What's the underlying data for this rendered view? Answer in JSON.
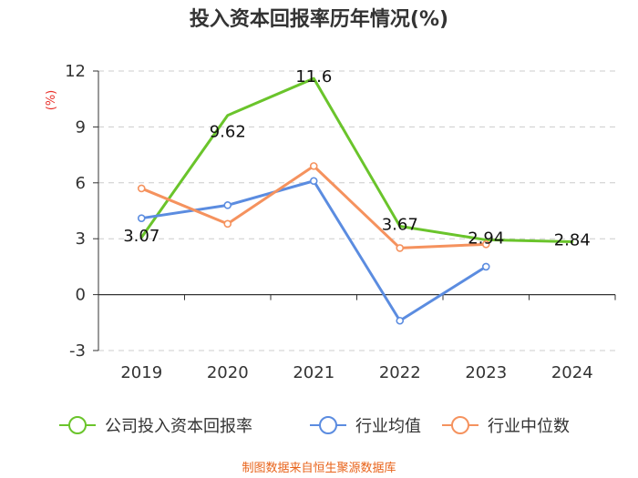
{
  "chart_data": {
    "type": "line",
    "title": "投入资本回报率历年情况(%)",
    "ylabel": "(%)",
    "xlabel": "",
    "categories": [
      "2019",
      "2020",
      "2021",
      "2022",
      "2023",
      "2024"
    ],
    "ylim": [
      -3,
      12
    ],
    "yticks": [
      -3,
      0,
      3,
      6,
      9,
      12
    ],
    "grid": true,
    "legend_position": "bottom",
    "series": [
      {
        "name": "公司投入资本回报率",
        "color": "#6ac42b",
        "values": [
          3.07,
          9.62,
          11.6,
          3.67,
          2.94,
          2.84
        ],
        "labels": [
          "3.07",
          "9.62",
          "11.6",
          "3.67",
          "2.94",
          "2.84"
        ],
        "show_markers": false
      },
      {
        "name": "行业均值",
        "color": "#5b8ce0",
        "values": [
          4.1,
          4.8,
          6.1,
          -1.4,
          1.5,
          null
        ],
        "show_markers": true
      },
      {
        "name": "行业中位数",
        "color": "#f5925e",
        "values": [
          5.7,
          3.8,
          6.9,
          2.5,
          2.7,
          null
        ],
        "show_markers": true
      }
    ],
    "source": "制图数据来自恒生聚源数据库"
  }
}
